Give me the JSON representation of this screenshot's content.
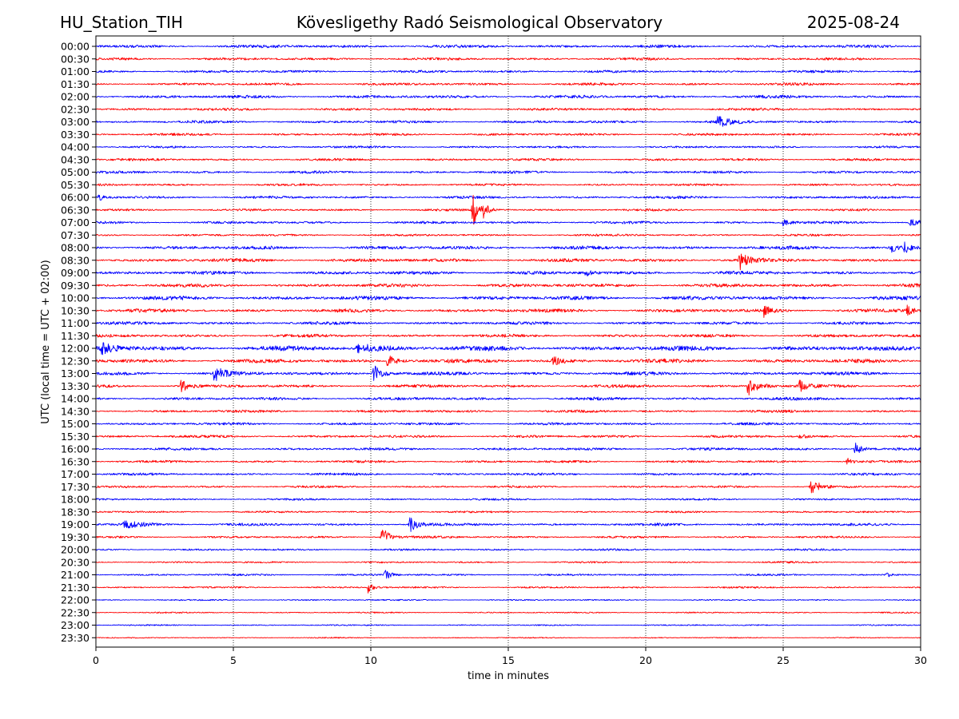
{
  "chart_data": {
    "type": "line",
    "title_left": "HU_Station_TIH",
    "title_center": "Kövesligethy Radó Seismological Observatory",
    "title_right": "2025-08-24",
    "xlabel": "time in minutes",
    "ylabel": "UTC (local time = UTC + 02:00)",
    "xlim": [
      0,
      30
    ],
    "x_ticks": [
      0,
      5,
      10,
      15,
      20,
      25,
      30
    ],
    "x_tick_labels": [
      "0",
      "5",
      "10",
      "15",
      "20",
      "25",
      "30"
    ],
    "grid": "vertical dotted lines at x ticks",
    "series_colors": [
      "#0000ff",
      "#ff0000"
    ],
    "rows": [
      "00:00",
      "00:30",
      "01:00",
      "01:30",
      "02:00",
      "02:30",
      "03:00",
      "03:30",
      "04:00",
      "04:30",
      "05:00",
      "05:30",
      "06:00",
      "06:30",
      "07:00",
      "07:30",
      "08:00",
      "08:30",
      "09:00",
      "09:30",
      "10:00",
      "10:30",
      "11:00",
      "11:30",
      "12:00",
      "12:30",
      "13:00",
      "13:30",
      "14:00",
      "14:30",
      "15:00",
      "15:30",
      "16:00",
      "16:30",
      "17:00",
      "17:30",
      "18:00",
      "18:30",
      "19:00",
      "19:30",
      "20:00",
      "20:30",
      "21:00",
      "21:30",
      "22:00",
      "22:30",
      "23:00",
      "23:30"
    ],
    "noise_levels": [
      0.35,
      0.3,
      0.3,
      0.3,
      0.35,
      0.3,
      0.3,
      0.28,
      0.25,
      0.28,
      0.3,
      0.25,
      0.3,
      0.25,
      0.3,
      0.25,
      0.4,
      0.4,
      0.4,
      0.4,
      0.45,
      0.4,
      0.35,
      0.35,
      0.55,
      0.45,
      0.4,
      0.35,
      0.35,
      0.3,
      0.3,
      0.3,
      0.3,
      0.28,
      0.28,
      0.25,
      0.22,
      0.22,
      0.3,
      0.25,
      0.22,
      0.2,
      0.22,
      0.2,
      0.15,
      0.15,
      0.15,
      0.12
    ],
    "events": [
      {
        "row": 6,
        "t": 22.6,
        "amp": 7,
        "dur": 0.4
      },
      {
        "row": 12,
        "t": 0.1,
        "amp": 4,
        "dur": 0.2
      },
      {
        "row": 13,
        "t": 13.7,
        "amp": 22,
        "dur": 0.2
      },
      {
        "row": 13,
        "t": 14.1,
        "amp": 8,
        "dur": 0.15
      },
      {
        "row": 14,
        "t": 25.0,
        "amp": 5,
        "dur": 0.2
      },
      {
        "row": 14,
        "t": 29.6,
        "amp": 5,
        "dur": 0.5
      },
      {
        "row": 16,
        "t": 28.9,
        "amp": 6,
        "dur": 0.2
      },
      {
        "row": 16,
        "t": 29.4,
        "amp": 8,
        "dur": 0.2
      },
      {
        "row": 17,
        "t": 23.4,
        "amp": 12,
        "dur": 0.25
      },
      {
        "row": 18,
        "t": 17.8,
        "amp": 6,
        "dur": 0.15
      },
      {
        "row": 21,
        "t": 24.3,
        "amp": 7,
        "dur": 0.2
      },
      {
        "row": 21,
        "t": 29.5,
        "amp": 6,
        "dur": 0.2
      },
      {
        "row": 24,
        "t": 0.2,
        "amp": 6,
        "dur": 0.5
      },
      {
        "row": 24,
        "t": 9.5,
        "amp": 5,
        "dur": 0.8
      },
      {
        "row": 25,
        "t": 10.6,
        "amp": 8,
        "dur": 0.3
      },
      {
        "row": 25,
        "t": 16.6,
        "amp": 6,
        "dur": 0.3
      },
      {
        "row": 26,
        "t": 4.3,
        "amp": 10,
        "dur": 0.3
      },
      {
        "row": 26,
        "t": 10.1,
        "amp": 11,
        "dur": 0.3
      },
      {
        "row": 27,
        "t": 3.1,
        "amp": 9,
        "dur": 0.2
      },
      {
        "row": 27,
        "t": 23.7,
        "amp": 13,
        "dur": 0.35
      },
      {
        "row": 27,
        "t": 25.6,
        "amp": 8,
        "dur": 0.2
      },
      {
        "row": 31,
        "t": 25.6,
        "amp": 5,
        "dur": 0.15
      },
      {
        "row": 32,
        "t": 27.6,
        "amp": 9,
        "dur": 0.25
      },
      {
        "row": 33,
        "t": 27.3,
        "amp": 7,
        "dur": 0.15
      },
      {
        "row": 35,
        "t": 26.0,
        "amp": 14,
        "dur": 0.25
      },
      {
        "row": 38,
        "t": 1.0,
        "amp": 5,
        "dur": 0.6
      },
      {
        "row": 38,
        "t": 11.4,
        "amp": 11,
        "dur": 0.25
      },
      {
        "row": 39,
        "t": 10.4,
        "amp": 14,
        "dur": 0.25
      },
      {
        "row": 42,
        "t": 10.5,
        "amp": 7,
        "dur": 0.2
      },
      {
        "row": 42,
        "t": 28.7,
        "amp": 4,
        "dur": 0.2
      },
      {
        "row": 43,
        "t": 9.9,
        "amp": 7,
        "dur": 0.15
      }
    ]
  }
}
